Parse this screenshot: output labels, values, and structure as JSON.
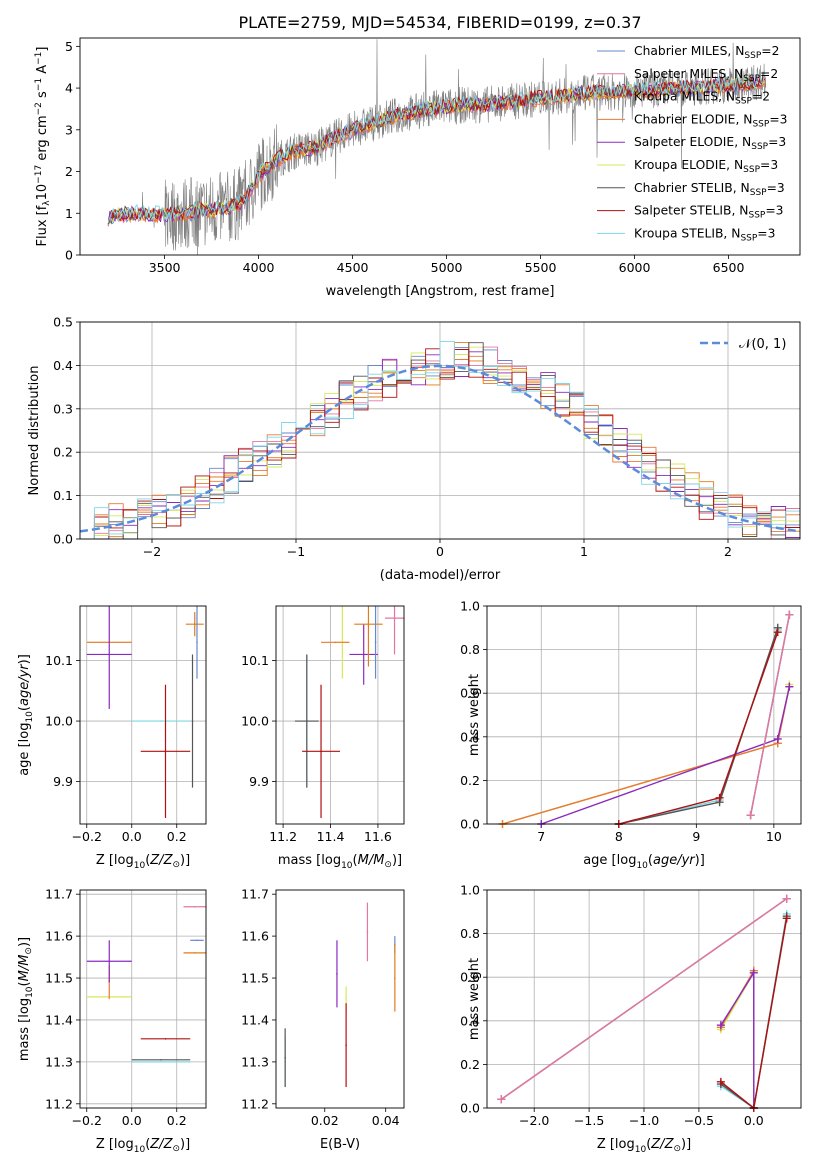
{
  "figure": {
    "title": "PLATE=2759, MJD=54534, FIBERID=0199, z=0.37"
  },
  "colors": {
    "axes": "#000000",
    "grid": "#b0b0b0",
    "normal_curve": "#5b8bdc",
    "models": {
      "Chabrier MILES": "#6688cc",
      "Salpeter MILES": "#e377a2",
      "Kroupa MILES": "#e07d1a",
      "Chabrier ELODIE": "#e87a35",
      "Salpeter ELODIE": "#8a2bbf",
      "Kroupa ELODIE": "#d8e85a",
      "Chabrier STELIB": "#555555",
      "Salpeter STELIB": "#b01010",
      "Kroupa STELIB": "#7ed6e6"
    }
  },
  "chart_data": [
    {
      "type": "line",
      "panel": "spectrum",
      "xlabel": "wavelength [Angstrom, rest frame]",
      "ylabel_parts": [
        "Flux [f",
        "λ",
        "10",
        "−17",
        " erg cm",
        "−2",
        " s",
        "−1",
        " A",
        "−1",
        "]"
      ],
      "xlim": [
        3050,
        6880
      ],
      "ylim": [
        0,
        5.2
      ],
      "xticks": [
        3500,
        4000,
        4500,
        5000,
        5500,
        6000,
        6500
      ],
      "yticks": [
        0,
        1,
        2,
        3,
        4,
        5
      ],
      "grid": false,
      "legend_position": "right",
      "legend": [
        {
          "model": "Chabrier MILES",
          "nssp": "2"
        },
        {
          "model": "Salpeter MILES",
          "nssp": "2"
        },
        {
          "model": "Kroupa MILES",
          "nssp": "2"
        },
        {
          "model": "Chabrier ELODIE",
          "nssp": "3"
        },
        {
          "model": "Salpeter ELODIE",
          "nssp": "3"
        },
        {
          "model": "Kroupa ELODIE",
          "nssp": "3"
        },
        {
          "model": "Chabrier STELIB",
          "nssp": "3"
        },
        {
          "model": "Salpeter STELIB",
          "nssp": "3"
        },
        {
          "model": "Kroupa STELIB",
          "nssp": "3"
        }
      ],
      "nssp_prefix": "N",
      "nssp_sub": "SSP",
      "continuum": {
        "wavelength": [
          3200,
          3300,
          3400,
          3500,
          3600,
          3700,
          3800,
          3850,
          3900,
          3950,
          4000,
          4100,
          4200,
          4300,
          4400,
          4500,
          4600,
          4700,
          4800,
          4900,
          5000,
          5100,
          5200,
          5300,
          5400,
          5500,
          5600,
          5700,
          5800,
          5900,
          6000,
          6100,
          6200,
          6300,
          6400,
          6500,
          6600,
          6700
        ],
        "flux": [
          0.9,
          1.0,
          0.98,
          0.95,
          1.0,
          1.05,
          1.1,
          1.15,
          1.25,
          1.5,
          1.9,
          2.3,
          2.5,
          2.55,
          2.8,
          3.0,
          3.15,
          3.3,
          3.4,
          3.5,
          3.55,
          3.6,
          3.6,
          3.65,
          3.7,
          3.75,
          3.8,
          3.85,
          3.9,
          3.9,
          3.95,
          3.95,
          4.0,
          4.0,
          4.05,
          4.05,
          4.1,
          4.2
        ]
      },
      "noise_start": 3500,
      "noise_end": 6700
    },
    {
      "type": "bar",
      "panel": "residuals",
      "xlabel": "(data-model)/error",
      "ylabel": "Normed distribution",
      "xlim": [
        -2.5,
        2.5
      ],
      "ylim": [
        0,
        0.5
      ],
      "xticks": [
        -2,
        -1,
        0,
        1,
        2
      ],
      "yticks": [
        0,
        0.1,
        0.2,
        0.3,
        0.4,
        0.5
      ],
      "grid": true,
      "legend_position": "top-right",
      "legend": [
        {
          "name": "𝒩(0, 1)"
        }
      ],
      "bin_width": 0.1,
      "bin_start": -2.5,
      "histogram_mean": [
        0.02,
        0.03,
        0.04,
        0.04,
        0.05,
        0.06,
        0.07,
        0.09,
        0.11,
        0.12,
        0.15,
        0.17,
        0.19,
        0.21,
        0.23,
        0.26,
        0.28,
        0.3,
        0.32,
        0.34,
        0.36,
        0.37,
        0.38,
        0.39,
        0.4,
        0.41,
        0.41,
        0.41,
        0.4,
        0.39,
        0.38,
        0.36,
        0.34,
        0.32,
        0.3,
        0.27,
        0.25,
        0.22,
        0.2,
        0.17,
        0.15,
        0.13,
        0.11,
        0.09,
        0.08,
        0.06,
        0.05,
        0.04,
        0.03,
        0.03
      ]
    },
    {
      "type": "scatter",
      "panel": "age-vs-metallicity",
      "xlabel": "Z [log10(Z/Z⊙)]",
      "ylabel": "age [log10(age/yr)]",
      "xlim": [
        -0.23,
        0.33
      ],
      "ylim": [
        9.83,
        10.19
      ],
      "xticks": [
        -0.2,
        0.0,
        0.2
      ],
      "yticks": [
        9.9,
        10.0,
        10.1
      ],
      "grid": true,
      "points": [
        {
          "model": "Kroupa ELODIE",
          "x": -0.1,
          "y": 10.13,
          "xerr": 0.1,
          "yerr": 0.0
        },
        {
          "model": "Chabrier ELODIE",
          "x": -0.1,
          "y": 10.13,
          "xerr": 0.1,
          "yerr": 0.0
        },
        {
          "model": "Salpeter ELODIE",
          "x": -0.1,
          "y": 10.11,
          "xerr": 0.1,
          "yerr": 0.09
        },
        {
          "model": "Kroupa STELIB",
          "x": 0.13,
          "y": 10.0,
          "xerr": 0.13,
          "yerr": 0.0
        },
        {
          "model": "Chabrier STELIB",
          "x": 0.27,
          "y": 10.0,
          "xerr": 0.0,
          "yerr": 0.11
        },
        {
          "model": "Salpeter STELIB",
          "x": 0.15,
          "y": 9.95,
          "xerr": 0.11,
          "yerr": 0.11
        },
        {
          "model": "Kroupa MILES",
          "x": 0.28,
          "y": 10.16,
          "xerr": 0.04,
          "yerr": 0.02
        },
        {
          "model": "Chabrier MILES",
          "x": 0.29,
          "y": 10.13,
          "xerr": 0.0,
          "yerr": 0.06
        },
        {
          "model": "Salpeter MILES",
          "x": 0.28,
          "y": 10.17,
          "xerr": 0.0,
          "yerr": 0.0
        }
      ]
    },
    {
      "type": "scatter",
      "panel": "age-vs-mass",
      "xlabel": "mass [log10(M/M⊙)]",
      "ylabel": "",
      "xlim": [
        11.17,
        11.71
      ],
      "ylim": [
        9.83,
        10.19
      ],
      "xticks": [
        11.2,
        11.4,
        11.6
      ],
      "yticks": [
        9.9,
        10.0,
        10.1
      ],
      "grid": true,
      "points": [
        {
          "model": "Kroupa ELODIE",
          "x": 11.45,
          "y": 10.13,
          "xerr": 0.03,
          "yerr": 0.06
        },
        {
          "model": "Chabrier ELODIE",
          "x": 11.42,
          "y": 10.13,
          "xerr": 0.06,
          "yerr": 0.0
        },
        {
          "model": "Salpeter ELODIE",
          "x": 11.54,
          "y": 10.11,
          "xerr": 0.06,
          "yerr": 0.05
        },
        {
          "model": "Kroupa STELIB",
          "x": 11.3,
          "y": 10.0,
          "xerr": 0.05,
          "yerr": 0.11
        },
        {
          "model": "Chabrier STELIB",
          "x": 11.3,
          "y": 10.0,
          "xerr": 0.05,
          "yerr": 0.11
        },
        {
          "model": "Salpeter STELIB",
          "x": 11.36,
          "y": 9.95,
          "xerr": 0.08,
          "yerr": 0.11
        },
        {
          "model": "Kroupa MILES",
          "x": 11.56,
          "y": 10.16,
          "xerr": 0.06,
          "yerr": 0.07
        },
        {
          "model": "Chabrier MILES",
          "x": 11.59,
          "y": 10.13,
          "xerr": 0.0,
          "yerr": 0.06
        },
        {
          "model": "Salpeter MILES",
          "x": 11.67,
          "y": 10.17,
          "xerr": 0.04,
          "yerr": 0.06
        }
      ]
    },
    {
      "type": "line",
      "panel": "massweight-vs-age",
      "xlabel": "age [log10(age/yr)]",
      "ylabel": "mass weight",
      "xlim": [
        6.3,
        10.35
      ],
      "ylim": [
        0,
        1.0
      ],
      "xticks": [
        7,
        8,
        9,
        10
      ],
      "yticks": [
        0.0,
        0.2,
        0.4,
        0.6,
        0.8,
        1.0
      ],
      "grid": true,
      "series": [
        {
          "model": "Kroupa ELODIE",
          "x": [
            6.5,
            10.05,
            10.2
          ],
          "y": [
            0.0,
            0.37,
            0.64
          ]
        },
        {
          "model": "Chabrier ELODIE",
          "x": [
            6.5,
            10.05,
            10.2
          ],
          "y": [
            0.0,
            0.37,
            0.63
          ]
        },
        {
          "model": "Salpeter ELODIE",
          "x": [
            7.0,
            10.05,
            10.2
          ],
          "y": [
            0.0,
            0.39,
            0.63
          ]
        },
        {
          "model": "Kroupa STELIB",
          "x": [
            8.0,
            9.3,
            10.05
          ],
          "y": [
            0.0,
            0.11,
            0.89
          ]
        },
        {
          "model": "Chabrier STELIB",
          "x": [
            8.0,
            9.3,
            10.05
          ],
          "y": [
            0.0,
            0.1,
            0.9
          ]
        },
        {
          "model": "Salpeter STELIB",
          "x": [
            8.0,
            9.3,
            10.05
          ],
          "y": [
            0.0,
            0.12,
            0.88
          ]
        },
        {
          "model": "Kroupa MILES",
          "x": [
            9.7,
            10.2
          ],
          "y": [
            0.04,
            0.96
          ]
        },
        {
          "model": "Chabrier MILES",
          "x": [
            9.7,
            10.2
          ],
          "y": [
            0.04,
            0.96
          ]
        },
        {
          "model": "Salpeter MILES",
          "x": [
            9.7,
            10.2
          ],
          "y": [
            0.04,
            0.96
          ]
        }
      ]
    },
    {
      "type": "scatter",
      "panel": "mass-vs-metallicity",
      "xlabel": "Z [log10(Z/Z⊙)]",
      "ylabel": "mass [log10(M/M⊙)]",
      "xlim": [
        -0.23,
        0.33
      ],
      "ylim": [
        11.19,
        11.71
      ],
      "xticks": [
        -0.2,
        0.0,
        0.2
      ],
      "yticks": [
        11.2,
        11.3,
        11.4,
        11.5,
        11.6,
        11.7
      ],
      "grid": true,
      "points": [
        {
          "model": "Kroupa ELODIE",
          "x": -0.1,
          "y": 11.455,
          "xerr": 0.1,
          "yerr": 0.0
        },
        {
          "model": "Chabrier ELODIE",
          "x": -0.1,
          "y": 11.49,
          "xerr": 0.0,
          "yerr": 0.04
        },
        {
          "model": "Salpeter ELODIE",
          "x": -0.1,
          "y": 11.54,
          "xerr": 0.1,
          "yerr": 0.05
        },
        {
          "model": "Kroupa STELIB",
          "x": 0.13,
          "y": 11.3,
          "xerr": 0.13,
          "yerr": 0.0
        },
        {
          "model": "Chabrier STELIB",
          "x": 0.13,
          "y": 11.305,
          "xerr": 0.13,
          "yerr": 0.0
        },
        {
          "model": "Salpeter STELIB",
          "x": 0.15,
          "y": 11.355,
          "xerr": 0.11,
          "yerr": 0.0
        },
        {
          "model": "Kroupa MILES",
          "x": 0.28,
          "y": 11.56,
          "xerr": 0.05,
          "yerr": 0.0
        },
        {
          "model": "Chabrier MILES",
          "x": 0.29,
          "y": 11.59,
          "xerr": 0.03,
          "yerr": 0.0
        },
        {
          "model": "Salpeter MILES",
          "x": 0.28,
          "y": 11.67,
          "xerr": 0.05,
          "yerr": 0.0
        }
      ]
    },
    {
      "type": "scatter",
      "panel": "mass-vs-extinction",
      "xlabel": "E(B-V)",
      "ylabel": "",
      "xlim": [
        0.004,
        0.046
      ],
      "ylim": [
        11.19,
        11.71
      ],
      "xticks": [
        0.02,
        0.04
      ],
      "yticks": [
        11.2,
        11.3,
        11.4,
        11.5,
        11.6,
        11.7
      ],
      "grid": false,
      "points": [
        {
          "model": "Kroupa STELIB",
          "x": 0.007,
          "y": 11.3,
          "xerr": 0.0,
          "yerr": 0.06
        },
        {
          "model": "Chabrier STELIB",
          "x": 0.007,
          "y": 11.31,
          "xerr": 0.0,
          "yerr": 0.07
        },
        {
          "model": "Salpeter ELODIE",
          "x": 0.024,
          "y": 11.51,
          "xerr": 0.0,
          "yerr": 0.08
        },
        {
          "model": "Kroupa ELODIE",
          "x": 0.027,
          "y": 11.45,
          "xerr": 0.0,
          "yerr": 0.03
        },
        {
          "model": "Salpeter STELIB",
          "x": 0.027,
          "y": 11.34,
          "xerr": 0.0,
          "yerr": 0.1
        },
        {
          "model": "Salpeter MILES",
          "x": 0.034,
          "y": 11.61,
          "xerr": 0.0,
          "yerr": 0.07
        },
        {
          "model": "Chabrier MILES",
          "x": 0.043,
          "y": 11.58,
          "xerr": 0.0,
          "yerr": 0.02
        },
        {
          "model": "Kroupa MILES",
          "x": 0.043,
          "y": 11.5,
          "xerr": 0.0,
          "yerr": 0.08
        }
      ]
    },
    {
      "type": "line",
      "panel": "massweight-vs-metallicity",
      "xlabel": "Z [log10(Z/Z⊙)]",
      "ylabel": "mass weight",
      "xlim": [
        -2.43,
        0.43
      ],
      "ylim": [
        0,
        1.0
      ],
      "xticks": [
        -2.0,
        -1.5,
        -1.0,
        -0.5,
        0.0
      ],
      "yticks": [
        0.0,
        0.2,
        0.4,
        0.6,
        0.8,
        1.0
      ],
      "grid": true,
      "series": [
        {
          "model": "Kroupa ELODIE",
          "x": [
            -0.3,
            0.0,
            0.0
          ],
          "y": [
            0.36,
            0.62,
            0.0
          ]
        },
        {
          "model": "Chabrier ELODIE",
          "x": [
            -0.3,
            0.0,
            0.0
          ],
          "y": [
            0.37,
            0.63,
            0.0
          ]
        },
        {
          "model": "Salpeter ELODIE",
          "x": [
            -0.3,
            0.0,
            0.0
          ],
          "y": [
            0.38,
            0.62,
            0.0
          ]
        },
        {
          "model": "Kroupa STELIB",
          "x": [
            -0.3,
            0.0,
            0.3
          ],
          "y": [
            0.1,
            0.0,
            0.89
          ]
        },
        {
          "model": "Chabrier STELIB",
          "x": [
            -0.3,
            0.0,
            0.3
          ],
          "y": [
            0.11,
            0.0,
            0.88
          ]
        },
        {
          "model": "Salpeter STELIB",
          "x": [
            -0.3,
            0.0,
            0.3
          ],
          "y": [
            0.12,
            0.0,
            0.87
          ]
        },
        {
          "model": "Kroupa MILES",
          "x": [
            -2.3,
            0.3
          ],
          "y": [
            0.04,
            0.96
          ]
        },
        {
          "model": "Chabrier MILES",
          "x": [
            -2.3,
            0.3
          ],
          "y": [
            0.04,
            0.96
          ]
        },
        {
          "model": "Salpeter MILES",
          "x": [
            -2.3,
            0.3
          ],
          "y": [
            0.04,
            0.96
          ]
        }
      ]
    }
  ]
}
